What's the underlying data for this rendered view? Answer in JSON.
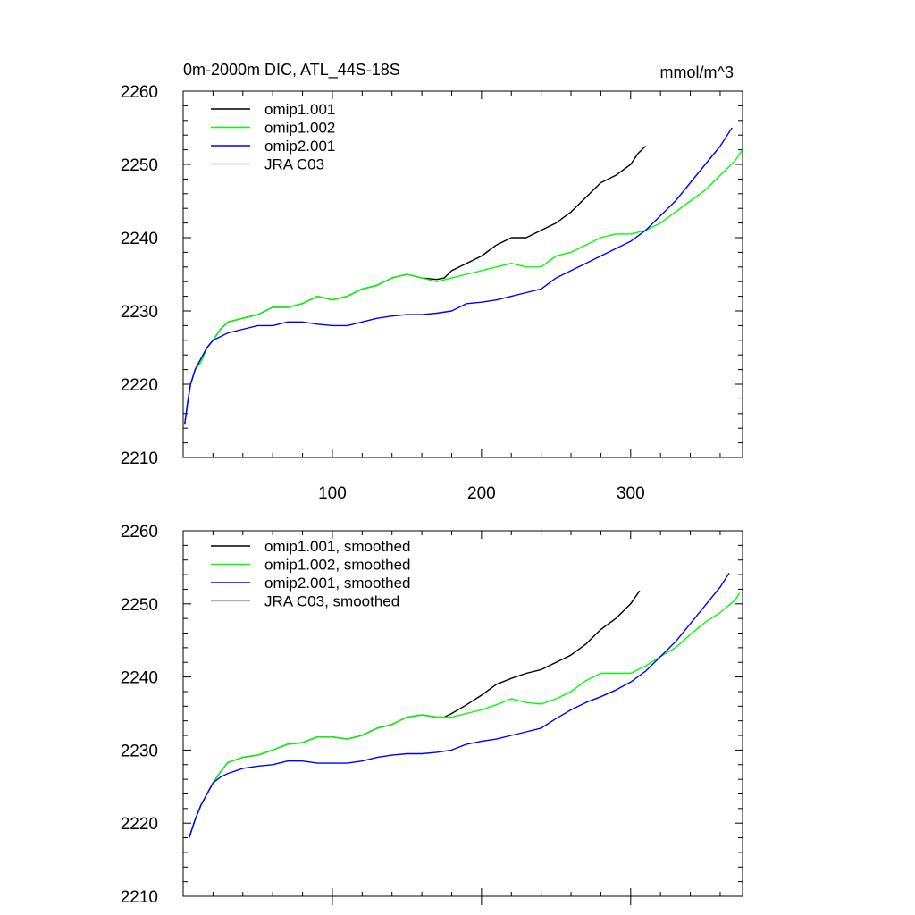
{
  "chart_data": [
    {
      "type": "line",
      "title": "0m-2000m DIC, ATL_44S-18S",
      "units": "mmol/m^3",
      "xlabel": "",
      "ylabel": "",
      "xlim": [
        0,
        375
      ],
      "ylim": [
        2210,
        2260
      ],
      "grid": false,
      "legend_position": "top-left",
      "x_ticks": [
        100,
        200,
        300
      ],
      "x_tick_labels": [
        "100",
        "200",
        "300"
      ],
      "y_ticks": [
        2210,
        2220,
        2230,
        2240,
        2250,
        2260
      ],
      "y_tick_labels": [
        "2210",
        "2220",
        "2230",
        "2240",
        "2250",
        "2260"
      ],
      "series": [
        {
          "name": "omip1.001",
          "color": "#000000",
          "x": [
            1,
            3,
            5,
            8,
            12,
            16,
            20,
            25,
            30,
            40,
            50,
            60,
            70,
            80,
            90,
            100,
            110,
            120,
            130,
            140,
            150,
            160,
            170,
            175,
            180,
            190,
            200,
            210,
            220,
            230,
            240,
            250,
            260,
            270,
            280,
            290,
            300,
            305,
            310
          ],
          "y": [
            2214.5,
            2217.5,
            2220,
            2222,
            2223.5,
            2225,
            2226,
            2227.5,
            2228.5,
            2229,
            2229.5,
            2230.5,
            2230.5,
            2231,
            2232,
            2231.5,
            2232,
            2233,
            2233.5,
            2234.5,
            2235,
            2234.5,
            2234.3,
            2234.5,
            2235.5,
            2236.5,
            2237.5,
            2239,
            2240,
            2240,
            2241,
            2242,
            2243.5,
            2245.5,
            2247.5,
            2248.5,
            2250,
            2251.5,
            2252.5
          ]
        },
        {
          "name": "omip1.002",
          "color": "#00ff00",
          "x": [
            1,
            3,
            5,
            8,
            12,
            16,
            20,
            25,
            30,
            40,
            50,
            60,
            70,
            80,
            90,
            100,
            110,
            120,
            130,
            140,
            150,
            160,
            170,
            180,
            190,
            200,
            210,
            220,
            230,
            240,
            250,
            260,
            270,
            280,
            290,
            300,
            310,
            320,
            330,
            340,
            350,
            360,
            370,
            375
          ],
          "y": [
            2214.5,
            2217.5,
            2220,
            2222,
            2223,
            2225,
            2226,
            2227.5,
            2228.5,
            2229,
            2229.5,
            2230.5,
            2230.5,
            2231,
            2232,
            2231.5,
            2232,
            2233,
            2233.5,
            2234.5,
            2235,
            2234.5,
            2234,
            2234.5,
            2235,
            2235.5,
            2236,
            2236.5,
            2236,
            2236,
            2237.5,
            2238,
            2239,
            2240,
            2240.5,
            2240.5,
            2241,
            2242,
            2243.5,
            2245,
            2246.5,
            2248.5,
            2250.5,
            2252
          ]
        },
        {
          "name": "omip2.001",
          "color": "#0000ff",
          "x": [
            1,
            3,
            5,
            8,
            12,
            16,
            20,
            25,
            30,
            40,
            50,
            60,
            70,
            80,
            90,
            100,
            110,
            120,
            130,
            140,
            150,
            160,
            170,
            180,
            190,
            200,
            210,
            220,
            230,
            240,
            250,
            260,
            270,
            280,
            290,
            300,
            310,
            320,
            330,
            340,
            350,
            360,
            368
          ],
          "y": [
            2214.5,
            2217.5,
            2220,
            2222,
            2223.5,
            2225,
            2226,
            2226.5,
            2227,
            2227.5,
            2228,
            2228,
            2228.5,
            2228.5,
            2228.2,
            2228,
            2228,
            2228.5,
            2229,
            2229.3,
            2229.5,
            2229.5,
            2229.7,
            2230,
            2231,
            2231.2,
            2231.5,
            2232,
            2232.5,
            2233,
            2234.5,
            2235.5,
            2236.5,
            2237.5,
            2238.5,
            2239.5,
            2241,
            2243,
            2245,
            2247.5,
            2250,
            2252.5,
            2255
          ]
        },
        {
          "name": "JRA C03",
          "color": "#b0b0b0",
          "x": [],
          "y": []
        }
      ]
    },
    {
      "type": "line",
      "title": "",
      "units": "",
      "xlabel": "",
      "ylabel": "",
      "xlim": [
        0,
        375
      ],
      "ylim": [
        2210,
        2260
      ],
      "grid": false,
      "legend_position": "top-left",
      "x_ticks": [
        100,
        200,
        300
      ],
      "x_tick_labels": [],
      "y_ticks": [
        2210,
        2220,
        2230,
        2240,
        2250,
        2260
      ],
      "y_tick_labels": [
        "2210",
        "2220",
        "2230",
        "2240",
        "2250",
        "2260"
      ],
      "series": [
        {
          "name": "omip1.001, smoothed",
          "color": "#000000",
          "x": [
            4,
            8,
            12,
            16,
            20,
            25,
            30,
            40,
            50,
            60,
            70,
            80,
            90,
            100,
            110,
            120,
            130,
            140,
            150,
            160,
            170,
            175,
            180,
            190,
            200,
            210,
            220,
            230,
            240,
            250,
            260,
            270,
            280,
            290,
            300,
            306
          ],
          "y": [
            2218,
            2220.5,
            2222.5,
            2224,
            2225.5,
            2227,
            2228.3,
            2229,
            2229.3,
            2230,
            2230.8,
            2231,
            2231.8,
            2231.8,
            2231.5,
            2232,
            2233,
            2233.5,
            2234.5,
            2234.8,
            2234.5,
            2234.5,
            2235,
            2236.2,
            2237.5,
            2239,
            2239.8,
            2240.5,
            2241,
            2242,
            2243,
            2244.5,
            2246.5,
            2248,
            2250,
            2251.8
          ]
        },
        {
          "name": "omip1.002, smoothed",
          "color": "#00ff00",
          "x": [
            4,
            8,
            12,
            16,
            20,
            25,
            30,
            40,
            50,
            60,
            70,
            80,
            90,
            100,
            110,
            120,
            130,
            140,
            150,
            160,
            170,
            180,
            190,
            200,
            210,
            220,
            230,
            240,
            250,
            260,
            270,
            280,
            290,
            300,
            310,
            320,
            330,
            340,
            350,
            360,
            370,
            373
          ],
          "y": [
            2218,
            2220.5,
            2222.5,
            2224,
            2225.5,
            2227,
            2228.3,
            2229,
            2229.3,
            2230,
            2230.8,
            2231,
            2231.8,
            2231.8,
            2231.5,
            2232,
            2233,
            2233.5,
            2234.5,
            2234.8,
            2234.5,
            2234.5,
            2235,
            2235.5,
            2236.2,
            2237,
            2236.5,
            2236.3,
            2237,
            2238,
            2239.5,
            2240.5,
            2240.5,
            2240.5,
            2241.5,
            2242.8,
            2244,
            2245.8,
            2247.5,
            2248.8,
            2250.5,
            2251.5
          ]
        },
        {
          "name": "omip2.001, smoothed",
          "color": "#0000ff",
          "x": [
            4,
            8,
            12,
            16,
            20,
            25,
            30,
            40,
            50,
            60,
            70,
            80,
            90,
            100,
            110,
            120,
            130,
            140,
            150,
            160,
            170,
            180,
            190,
            200,
            210,
            220,
            230,
            240,
            250,
            260,
            270,
            280,
            290,
            300,
            310,
            320,
            330,
            340,
            350,
            360,
            366
          ],
          "y": [
            2218,
            2220.5,
            2222.5,
            2224,
            2225.5,
            2226.3,
            2226.8,
            2227.5,
            2227.8,
            2228,
            2228.5,
            2228.5,
            2228.2,
            2228.2,
            2228.2,
            2228.5,
            2229,
            2229.3,
            2229.5,
            2229.5,
            2229.7,
            2230,
            2230.8,
            2231.2,
            2231.5,
            2232,
            2232.5,
            2233,
            2234.3,
            2235.5,
            2236.5,
            2237.3,
            2238.2,
            2239.3,
            2240.8,
            2242.8,
            2244.8,
            2247.3,
            2249.8,
            2252.3,
            2254.2
          ]
        },
        {
          "name": "JRA C03, smoothed",
          "color": "#b0b0b0",
          "x": [],
          "y": []
        }
      ]
    }
  ]
}
